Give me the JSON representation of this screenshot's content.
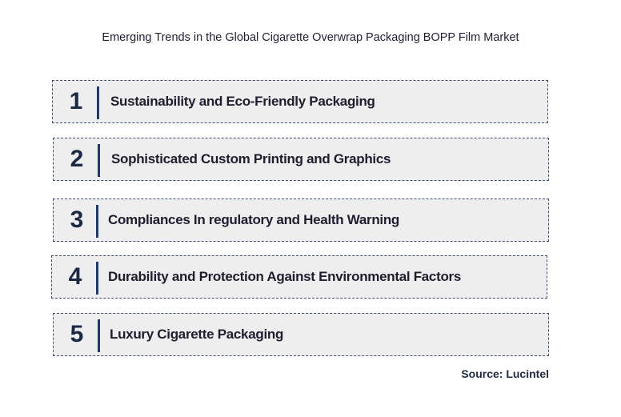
{
  "title": "Emerging Trends in the Global Cigarette Overwrap Packaging BOPP Film Market",
  "trends": [
    {
      "number": "1",
      "label": "Sustainability and Eco-Friendly Packaging"
    },
    {
      "number": "2",
      "label": "Sophisticated Custom Printing and Graphics"
    },
    {
      "number": "3",
      "label": "Compliances In regulatory and Health Warning"
    },
    {
      "number": "4",
      "label": "Durability and Protection Against Environmental Factors"
    },
    {
      "number": "5",
      "label": "Luxury Cigarette Packaging"
    }
  ],
  "source": "Source: Lucintel",
  "colors": {
    "box_fill": "#eeeeee",
    "box_border": "#3a4f7a",
    "divider": "#1f3a6b",
    "text": "#1e1e2e"
  }
}
